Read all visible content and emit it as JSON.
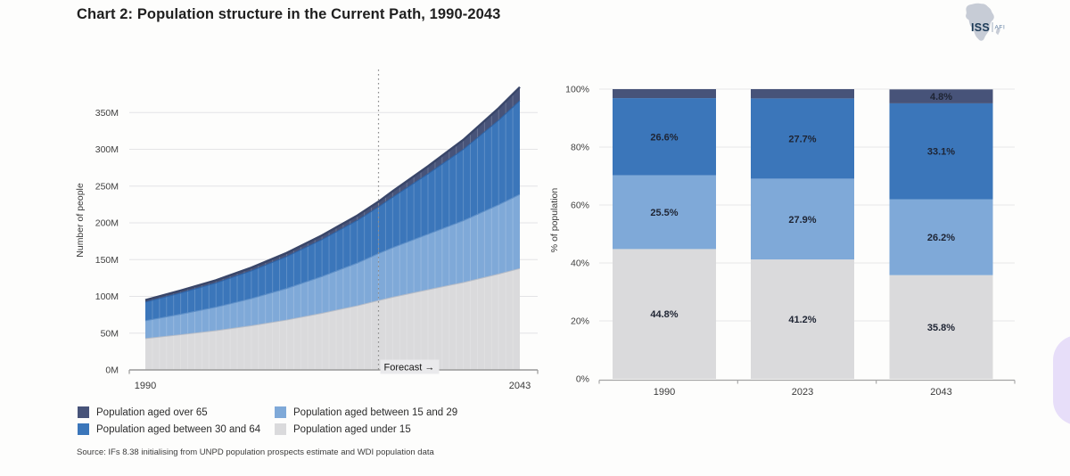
{
  "page": {
    "title": "Chart 2: Population structure in the Current Path, 1990-2043",
    "source": "Source: IFs 8.38 initialising from UNPD population prospects estimate and WDI population data"
  },
  "logo": {
    "org": "ISS",
    "suffix": "AFI"
  },
  "colors": {
    "over_65": "#475379",
    "aged_30_64": "#3b76ba",
    "aged_15_29": "#7fa9d8",
    "under_15": "#dadadc",
    "floating_widget": "#e7def9",
    "forecast_line": "#8c8c8c"
  },
  "legend": {
    "items": [
      {
        "label": "Population aged over 65",
        "color": "#475379"
      },
      {
        "label": "Population aged between 15 and 29",
        "color": "#7fa9d8"
      },
      {
        "label": "Population aged between 30 and 64",
        "color": "#3b76ba"
      },
      {
        "label": "Population aged under 15",
        "color": "#dadadc"
      }
    ]
  },
  "floating_widget": {
    "color": "#e7def9"
  },
  "chart_data": [
    {
      "type": "area",
      "stacked": true,
      "ylabel": "Number of people",
      "x_range": [
        1990,
        2043
      ],
      "x_tick_labels": [
        "1990",
        "2043"
      ],
      "y_ticks": [
        0,
        50,
        100,
        150,
        200,
        250,
        300,
        350
      ],
      "y_tick_labels": [
        "0M",
        "50M",
        "100M",
        "150M",
        "200M",
        "250M",
        "300M",
        "350M"
      ],
      "y_unit": "millions of people",
      "forecast": {
        "year": 2023,
        "label": "Forecast →"
      },
      "years": [
        1990,
        1995,
        2000,
        2005,
        2010,
        2015,
        2020,
        2023,
        2025,
        2030,
        2035,
        2040,
        2043
      ],
      "series": [
        {
          "name": "Population aged under 15",
          "color": "#dadadc",
          "values": [
            42.6,
            47.8,
            53.3,
            60.0,
            67.8,
            77.0,
            87.2,
            94.3,
            98.8,
            108.9,
            118.8,
            130.3,
            137.8
          ]
        },
        {
          "name": "Population aged between 15 and 29",
          "color": "#7fa9d8",
          "values": [
            24.2,
            27.9,
            32.0,
            37.0,
            42.9,
            50.0,
            58.1,
            63.9,
            67.4,
            75.6,
            84.1,
            94.2,
            100.9
          ]
        },
        {
          "name": "Population aged between 30 and 64",
          "color": "#3b76ba",
          "values": [
            25.3,
            28.9,
            32.9,
            37.7,
            43.4,
            50.2,
            58.0,
            63.4,
            68.6,
            82.0,
            96.8,
            114.9,
            127.4
          ]
        },
        {
          "name": "Population aged over 65",
          "color": "#475379",
          "values": [
            2.9,
            3.4,
            3.8,
            4.4,
            5.0,
            5.8,
            6.7,
            7.3,
            8.2,
            10.5,
            13.2,
            16.5,
            18.5
          ]
        }
      ]
    },
    {
      "type": "bar",
      "stacked": true,
      "ylabel": "% of population",
      "categories": [
        "1990",
        "2023",
        "2043"
      ],
      "ylim": [
        0,
        100
      ],
      "y_tick_labels": [
        "0%",
        "20%",
        "40%",
        "60%",
        "80%",
        "100%"
      ],
      "series": [
        {
          "name": "Population aged under 15",
          "color": "#dadadc",
          "values": [
            44.8,
            41.2,
            35.8
          ],
          "labels": [
            "44.8%",
            "41.2%",
            "35.8%"
          ]
        },
        {
          "name": "Population aged between 15 and 29",
          "color": "#7fa9d8",
          "values": [
            25.5,
            27.9,
            26.2
          ],
          "labels": [
            "25.5%",
            "27.9%",
            "26.2%"
          ]
        },
        {
          "name": "Population aged between 30 and 64",
          "color": "#3b76ba",
          "values": [
            26.6,
            27.7,
            33.1
          ],
          "labels": [
            "26.6%",
            "27.7%",
            "33.1%"
          ]
        },
        {
          "name": "Population aged over 65",
          "color": "#475379",
          "values": [
            3.1,
            3.2,
            4.8
          ],
          "labels": [
            "",
            "",
            "4.8%"
          ]
        }
      ]
    }
  ]
}
